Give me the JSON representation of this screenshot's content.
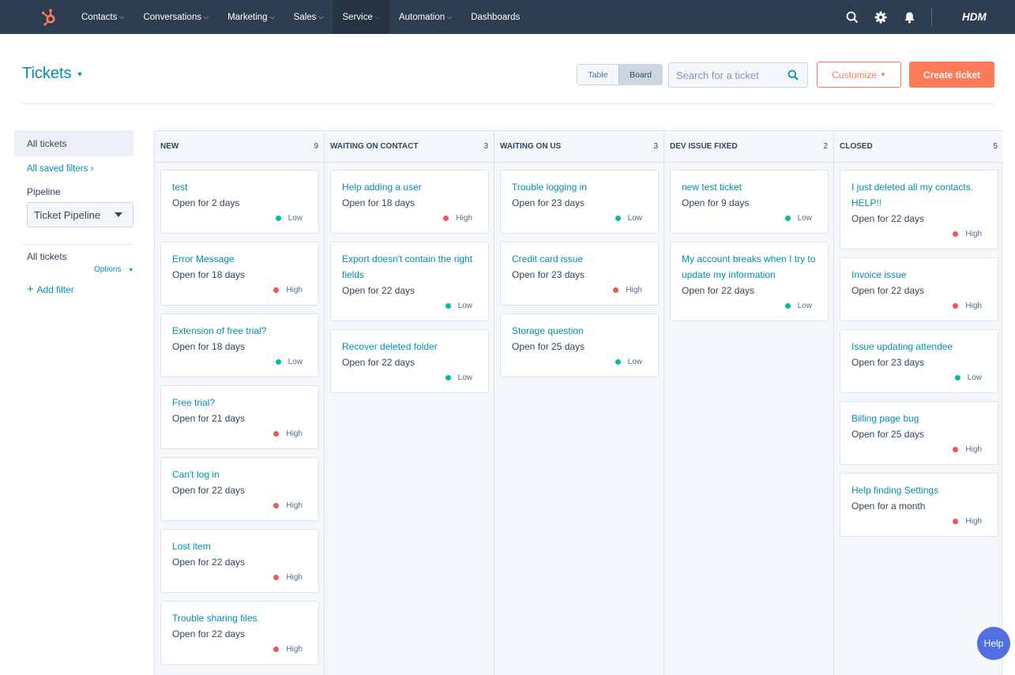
{
  "nav": {
    "items": [
      {
        "label": "Contacts",
        "caret": true,
        "active": false
      },
      {
        "label": "Conversations",
        "caret": true,
        "active": false
      },
      {
        "label": "Marketing",
        "caret": true,
        "active": false
      },
      {
        "label": "Sales",
        "caret": true,
        "active": false
      },
      {
        "label": "Service",
        "caret": true,
        "active": true
      },
      {
        "label": "Automation",
        "caret": true,
        "active": false
      },
      {
        "label": "Dashboards",
        "caret": false,
        "active": false
      }
    ],
    "account": "HDM",
    "accent_color": "#ff7a59",
    "bar_color": "#2d3e50"
  },
  "header": {
    "title": "Tickets",
    "view_table": "Table",
    "view_board": "Board",
    "search_placeholder": "Search for a ticket",
    "customize_label": "Customize",
    "create_label": "Create ticket"
  },
  "sidebar": {
    "all_tickets": "All tickets",
    "saved_filters": "All saved filters",
    "pipeline_label": "Pipeline",
    "pipeline_value": "Ticket Pipeline",
    "view_name": "All tickets",
    "options_label": "Options",
    "add_filter": "Add filter"
  },
  "board": {
    "columns": [
      {
        "name": "NEW",
        "count": "9",
        "cards": [
          {
            "title": "test",
            "age": "Open for 2 days",
            "priority": "Low"
          },
          {
            "title": "Error Message",
            "age": "Open for 18 days",
            "priority": "High"
          },
          {
            "title": "Extension of free trial?",
            "age": "Open for 18 days",
            "priority": "Low"
          },
          {
            "title": "Free trial?",
            "age": "Open for 21 days",
            "priority": "High"
          },
          {
            "title": "Can't log in",
            "age": "Open for 22 days",
            "priority": "High"
          },
          {
            "title": "Lost item",
            "age": "Open for 22 days",
            "priority": "High"
          },
          {
            "title": "Trouble sharing files",
            "age": "Open for 22 days",
            "priority": "High"
          }
        ]
      },
      {
        "name": "WAITING ON CONTACT",
        "count": "3",
        "cards": [
          {
            "title": "Help adding a user",
            "age": "Open for 18 days",
            "priority": "High"
          },
          {
            "title": "Export doesn't contain the right fields",
            "age": "Open for 22 days",
            "priority": "Low"
          },
          {
            "title": "Recover deleted folder",
            "age": "Open for 22 days",
            "priority": "Low"
          }
        ]
      },
      {
        "name": "WAITING ON US",
        "count": "3",
        "cards": [
          {
            "title": "Trouble logging in",
            "age": "Open for 23 days",
            "priority": "Low"
          },
          {
            "title": "Credit card issue",
            "age": "Open for 23 days",
            "priority": "High"
          },
          {
            "title": "Storage question",
            "age": "Open for 25 days",
            "priority": "Low"
          }
        ]
      },
      {
        "name": "DEV ISSUE FIXED",
        "count": "2",
        "cards": [
          {
            "title": "new test ticket",
            "age": "Open for 9 days",
            "priority": "Low"
          },
          {
            "title": "My account breaks when I try to update my information",
            "age": "Open for 22 days",
            "priority": "Low"
          }
        ]
      },
      {
        "name": "CLOSED",
        "count": "5",
        "cards": [
          {
            "title": "I just deleted all my contacts. HELP!!",
            "age": "Open for 22 days",
            "priority": "High"
          },
          {
            "title": "Invoice issue",
            "age": "Open for 22 days",
            "priority": "High"
          },
          {
            "title": "Issue updating attendee",
            "age": "Open for 23 days",
            "priority": "Low"
          },
          {
            "title": "Billing page bug",
            "age": "Open for 25 days",
            "priority": "High"
          },
          {
            "title": "Help finding Settings",
            "age": "Open for a month",
            "priority": "High"
          }
        ]
      }
    ],
    "priority_colors": {
      "Low": "#00bda5",
      "High": "#f2545b"
    }
  },
  "help_label": "Help"
}
